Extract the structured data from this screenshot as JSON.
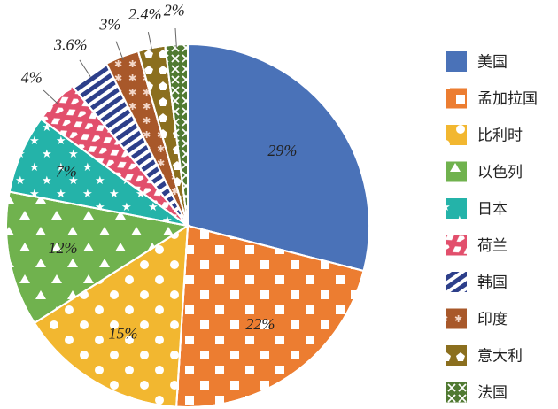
{
  "chart_data": {
    "type": "pie",
    "title": "",
    "legend_position": "right",
    "slices": [
      {
        "label": "美国",
        "value": 29,
        "display": "29%",
        "color": "#4a72b8",
        "pattern": "solid"
      },
      {
        "label": "孟加拉国",
        "value": 22,
        "display": "22%",
        "color": "#ec7d31",
        "pattern": "squares"
      },
      {
        "label": "比利时",
        "value": 15,
        "display": "15%",
        "color": "#f2b730",
        "pattern": "dots"
      },
      {
        "label": "以色列",
        "value": 12,
        "display": "12%",
        "color": "#70b24e",
        "pattern": "triangles"
      },
      {
        "label": "日本",
        "value": 7,
        "display": "7%",
        "color": "#24b3a9",
        "pattern": "stars"
      },
      {
        "label": "荷兰",
        "value": 4,
        "display": "4%",
        "color": "#e24f6c",
        "pattern": "diamonds"
      },
      {
        "label": "韩国",
        "value": 3.6,
        "display": "3.6%",
        "color": "#2d3f8a",
        "pattern": "hatch"
      },
      {
        "label": "印度",
        "value": 3,
        "display": "3%",
        "color": "#a8582a",
        "pattern": "asterisks"
      },
      {
        "label": "意大利",
        "value": 2.4,
        "display": "2.4%",
        "color": "#8b6f1e",
        "pattern": "pentagons"
      },
      {
        "label": "法国",
        "value": 2,
        "display": "2%",
        "color": "#507a32",
        "pattern": "crosses"
      }
    ]
  }
}
